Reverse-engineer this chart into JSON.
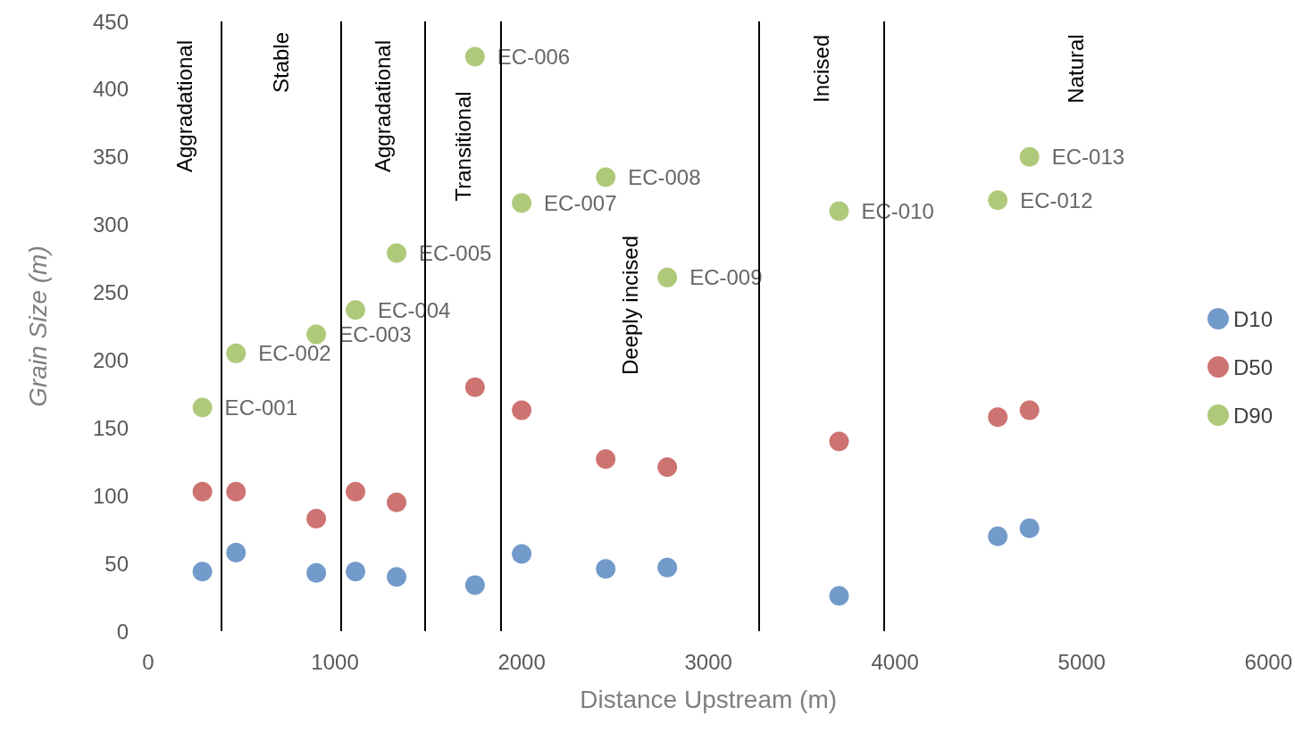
{
  "chart_data": {
    "type": "scatter",
    "xlabel": "Distance Upstream (m)",
    "ylabel": "Grain Size (m)",
    "xlim": [
      0,
      6000
    ],
    "xticks": [
      0,
      1000,
      2000,
      3000,
      4000,
      5000,
      6000
    ],
    "ylim": [
      0,
      450
    ],
    "yticks": [
      0,
      50,
      100,
      150,
      200,
      250,
      300,
      350,
      400,
      450
    ],
    "grid": false,
    "legend": "right",
    "marker": "circle",
    "series": [
      {
        "name": "D10",
        "color": "#4f81bd",
        "x": [
          290,
          470,
          900,
          1110,
          1330,
          1750,
          2000,
          2450,
          2780,
          3700,
          4550,
          4720
        ],
        "values": [
          44,
          58,
          43,
          44,
          40,
          34,
          57,
          46,
          47,
          26,
          70,
          76
        ]
      },
      {
        "name": "D50",
        "color": "#c0504d",
        "x": [
          290,
          470,
          900,
          1110,
          1330,
          1750,
          2000,
          2450,
          2780,
          3700,
          4550,
          4720
        ],
        "values": [
          103,
          103,
          83,
          103,
          95,
          180,
          163,
          127,
          121,
          140,
          158,
          163
        ]
      },
      {
        "name": "D90",
        "color": "#9bbb59",
        "x": [
          290,
          470,
          900,
          1110,
          1330,
          1750,
          2000,
          2450,
          2780,
          3700,
          4550,
          4720
        ],
        "values": [
          165,
          205,
          219,
          237,
          279,
          424,
          316,
          335,
          261,
          310,
          318,
          350
        ],
        "value_labels": [
          "EC-001",
          "EC-002",
          "EC-003",
          "EC-004",
          "EC-005",
          "EC-006",
          "EC-007",
          "EC-008",
          "EC-009",
          "EC-010",
          "EC-012",
          "EC-013"
        ]
      }
    ],
    "ref_lines": [
      {
        "axis": "x",
        "value": 390,
        "color": "#000000"
      },
      {
        "axis": "x",
        "value": 1030,
        "color": "#000000"
      },
      {
        "axis": "x",
        "value": 1480,
        "color": "#000000"
      },
      {
        "axis": "x",
        "value": 1890,
        "color": "#000000"
      },
      {
        "axis": "x",
        "value": 3270,
        "color": "#000000"
      },
      {
        "axis": "x",
        "value": 3940,
        "color": "#000000"
      }
    ],
    "annotations": [
      "Aggradational",
      "Stable",
      "Aggradational",
      "Transitional",
      "Deeply incised",
      "Incised",
      "Natural"
    ]
  }
}
